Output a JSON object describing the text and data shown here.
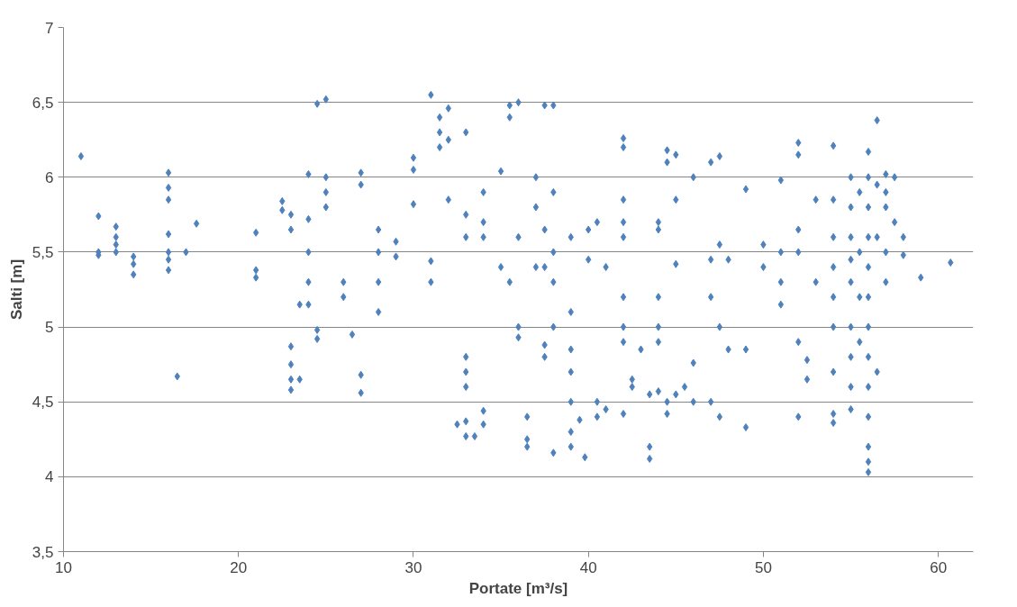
{
  "chart_data": {
    "type": "scatter",
    "xlabel": "Portate [m³/s]",
    "ylabel": "Salti [m]",
    "xlim": [
      10,
      62
    ],
    "xticks": [
      10,
      20,
      30,
      40,
      50,
      60
    ],
    "ylim": [
      3.5,
      7
    ],
    "yticks": [
      {
        "value": 3.5,
        "label": "3,5"
      },
      4,
      {
        "value": 4.5,
        "label": "4,5"
      },
      5,
      {
        "value": 5.5,
        "label": "5,5"
      },
      6,
      {
        "value": 6.5,
        "label": "6,5"
      },
      7
    ],
    "grid": "y",
    "marker": "diamond",
    "series": [
      {
        "color": "#4f81bd",
        "x": [
          11,
          12,
          12,
          12,
          13,
          13,
          13,
          13,
          14,
          14,
          14,
          16,
          16,
          16,
          16,
          16,
          16,
          16,
          16.5,
          17,
          17.6,
          21,
          21,
          21,
          22.5,
          22.5,
          23,
          23,
          23,
          23,
          23,
          23,
          23.5,
          23.5,
          24,
          24,
          24,
          24,
          24,
          24.5,
          24.5,
          24.5,
          25,
          25,
          25,
          25,
          26,
          26,
          26.5,
          27,
          27,
          27,
          27,
          28,
          28,
          28,
          28,
          29,
          29,
          30,
          30,
          30,
          31,
          31,
          31,
          31.5,
          31.5,
          31.5,
          32,
          32,
          32,
          32.5,
          33,
          33,
          33,
          33,
          33,
          33,
          33,
          33,
          33.5,
          34,
          34,
          34,
          34,
          34,
          35,
          35,
          35.5,
          35.5,
          35.5,
          36,
          36,
          36,
          36,
          36.5,
          36.5,
          36.5,
          37,
          37,
          37,
          37.5,
          37.5,
          37.5,
          37.5,
          37.5,
          38,
          38,
          38,
          38,
          38,
          38,
          39,
          39,
          39,
          39,
          39,
          39,
          39,
          39.5,
          39.8,
          40,
          40,
          40.5,
          40.5,
          40.5,
          41,
          41,
          42,
          42,
          42,
          42,
          42,
          42,
          42,
          42,
          42,
          42.5,
          42.5,
          43,
          43.5,
          43.5,
          43.5,
          44,
          44,
          44,
          44,
          44,
          44,
          44.5,
          44.5,
          44.5,
          44.5,
          45,
          45,
          45,
          45,
          45.5,
          46,
          46,
          46,
          47,
          47,
          47,
          47,
          47.5,
          47.5,
          47.5,
          47.5,
          48,
          48,
          49,
          49,
          49,
          50,
          50,
          51,
          51,
          51,
          51,
          52,
          52,
          52,
          52,
          52,
          52,
          52.5,
          52.5,
          53,
          53,
          54,
          54,
          54,
          54,
          54,
          54,
          54,
          54,
          54,
          55,
          55,
          55,
          55,
          55,
          55,
          55,
          55,
          55,
          55.5,
          55.5,
          55.5,
          55.5,
          56,
          56,
          56,
          56,
          56,
          56,
          56,
          56,
          56,
          56,
          56,
          56,
          56,
          56.5,
          56.5,
          56.5,
          56.5,
          57,
          57,
          57,
          57,
          57,
          57.5,
          57.5,
          58,
          58,
          59,
          60.7
        ],
        "values": [
          6.14,
          5.74,
          5.5,
          5.48,
          5.67,
          5.6,
          5.55,
          5.5,
          5.47,
          5.42,
          5.35,
          6.03,
          5.93,
          5.85,
          5.62,
          5.5,
          5.45,
          5.38,
          4.67,
          5.5,
          5.69,
          5.63,
          5.38,
          5.33,
          5.84,
          5.78,
          5.75,
          5.65,
          4.87,
          4.75,
          4.65,
          4.58,
          4.65,
          5.15,
          6.02,
          5.72,
          5.5,
          5.3,
          5.15,
          6.49,
          4.98,
          4.92,
          6.52,
          6.0,
          5.9,
          5.8,
          5.3,
          5.2,
          4.95,
          6.03,
          5.95,
          4.68,
          4.56,
          5.65,
          5.5,
          5.3,
          5.1,
          5.57,
          5.47,
          6.13,
          6.05,
          5.82,
          6.55,
          5.44,
          5.3,
          6.4,
          6.3,
          6.2,
          6.46,
          6.25,
          5.85,
          4.35,
          6.3,
          5.75,
          5.6,
          4.8,
          4.7,
          4.6,
          4.37,
          4.27,
          4.27,
          5.9,
          5.7,
          5.6,
          4.44,
          4.35,
          6.04,
          5.4,
          6.48,
          6.4,
          5.3,
          6.5,
          5.6,
          5.0,
          4.93,
          4.4,
          4.25,
          4.2,
          6.0,
          5.8,
          5.4,
          6.48,
          5.65,
          5.4,
          4.88,
          4.8,
          6.48,
          5.9,
          5.5,
          5.3,
          5.0,
          4.16,
          5.6,
          5.1,
          4.85,
          4.7,
          4.5,
          4.3,
          4.2,
          4.38,
          4.13,
          5.65,
          5.45,
          5.7,
          4.5,
          4.4,
          5.4,
          4.45,
          6.26,
          6.2,
          5.85,
          5.7,
          5.6,
          5.2,
          5.0,
          4.9,
          4.42,
          4.65,
          4.6,
          4.85,
          4.55,
          4.2,
          4.12,
          5.7,
          5.65,
          5.2,
          5.0,
          4.9,
          4.57,
          6.18,
          6.1,
          4.5,
          4.42,
          6.15,
          5.85,
          5.42,
          4.55,
          4.6,
          6.0,
          4.76,
          4.5,
          6.1,
          5.45,
          5.2,
          4.5,
          6.14,
          5.55,
          5.0,
          4.4,
          5.45,
          4.85,
          5.92,
          4.85,
          4.33,
          5.55,
          5.4,
          5.98,
          5.5,
          5.3,
          5.15,
          6.23,
          6.15,
          5.65,
          5.5,
          4.9,
          4.4,
          4.78,
          4.65,
          5.85,
          5.3,
          6.21,
          5.85,
          5.6,
          5.4,
          5.2,
          5.0,
          4.7,
          4.42,
          4.36,
          6.0,
          5.8,
          5.6,
          5.45,
          5.3,
          5.0,
          4.8,
          4.6,
          4.45,
          5.9,
          5.5,
          5.2,
          4.9,
          6.17,
          6.0,
          5.8,
          5.6,
          5.4,
          5.2,
          5.0,
          4.8,
          4.6,
          4.4,
          4.2,
          4.1,
          4.03,
          6.38,
          5.95,
          5.6,
          4.7,
          6.02,
          5.9,
          5.8,
          5.5,
          5.3,
          6.0,
          5.7,
          5.6,
          5.48,
          5.33,
          5.43
        ]
      }
    ]
  }
}
